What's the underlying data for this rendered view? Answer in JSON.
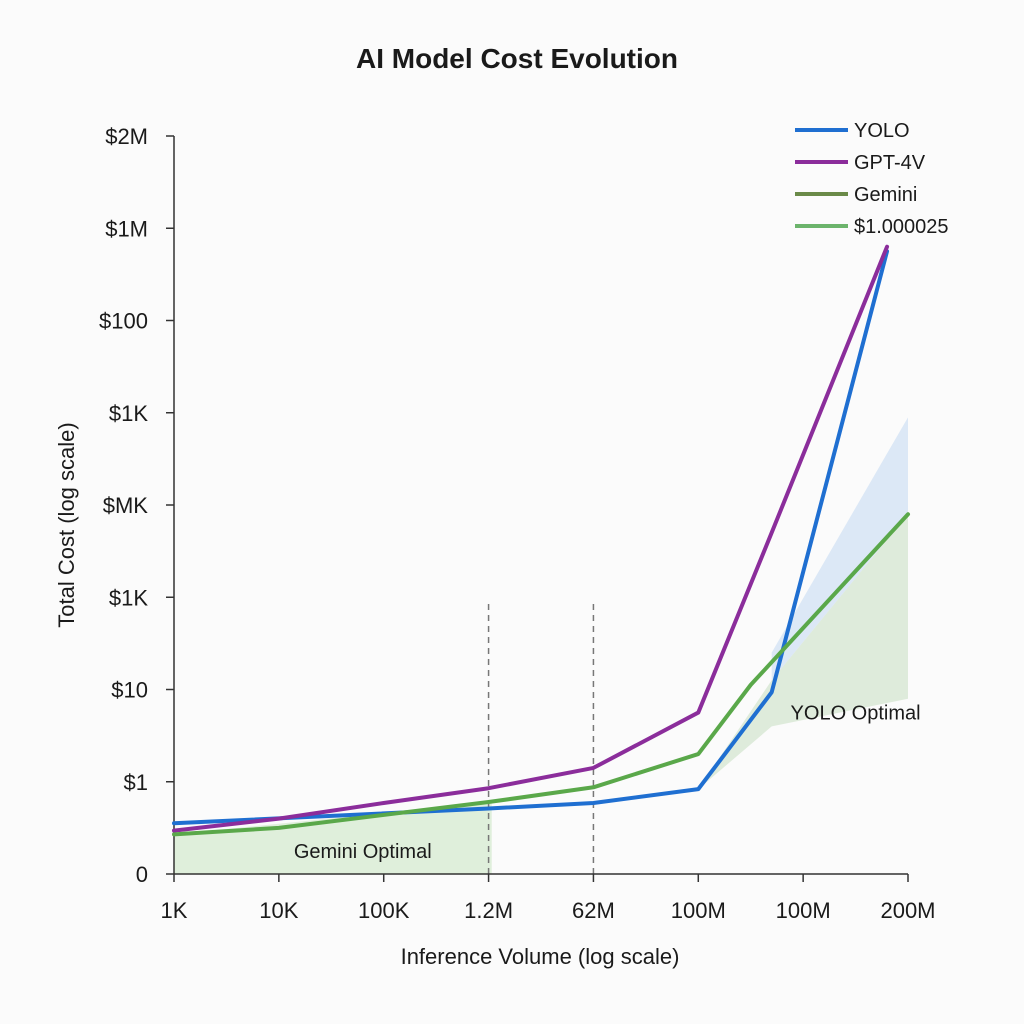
{
  "chart_data": {
    "type": "line",
    "title": "AI Model Cost Evolution",
    "xlabel": "Inference Volume (log scale)",
    "ylabel": "Total Cost (log scale)",
    "x_ticks": [
      "1K",
      "10K",
      "100K",
      "1.2M",
      "62M",
      "100M",
      "100M",
      "200M"
    ],
    "y_ticks": [
      "0",
      "$1",
      "$10",
      "$1K",
      "$MK",
      "$1K",
      "$100",
      "$1M",
      "$2M"
    ],
    "xlim": [
      0,
      7
    ],
    "ylim": [
      0,
      8
    ],
    "grid": false,
    "legend_position": "top-right",
    "series": [
      {
        "name": "YOLO",
        "color": "#1f6fd1",
        "x": [
          0,
          3,
          4,
          5,
          5.7,
          6.8
        ],
        "y": [
          0.55,
          0.71,
          0.77,
          0.92,
          1.97,
          6.75
        ]
      },
      {
        "name": "GPT-4V",
        "color": "#8b2d9b",
        "x": [
          0,
          1,
          2,
          3,
          4,
          5,
          5.7,
          6.8
        ],
        "y": [
          0.47,
          0.6,
          0.77,
          0.93,
          1.15,
          1.75,
          3.7,
          6.8
        ]
      },
      {
        "name": "Gemini",
        "color": "#5aa84a",
        "x": [
          0,
          1,
          3,
          4,
          5,
          5.5,
          7.0
        ],
        "y": [
          0.43,
          0.5,
          0.78,
          0.94,
          1.3,
          2.05,
          3.9
        ]
      }
    ],
    "legend": [
      {
        "label": "YOLO",
        "color": "#1f6fd1"
      },
      {
        "label": "GPT-4V",
        "color": "#8b2d9b"
      },
      {
        "label": "Gemini",
        "color": "#6a8a48"
      },
      {
        "label": "$1.000025",
        "color": "#6cb46c"
      }
    ],
    "reference_lines_x": [
      3.0,
      4.0
    ],
    "regions": [
      {
        "label": "Gemini Optimal",
        "color": "#d6ebd0",
        "x": [
          0,
          3.03
        ],
        "upper": [
          0.43,
          0.78
        ]
      },
      {
        "label": "YOLO Optimal",
        "color": "#d4e6d0",
        "x": [
          5,
          5.7,
          7.0
        ],
        "lower": [
          0.92,
          1.6,
          1.9
        ],
        "upper": [
          0.92,
          2.1,
          3.9
        ]
      }
    ],
    "blue_band": {
      "color": "#d6e4f5",
      "x": [
        5.7,
        7.0
      ],
      "lower": [
        2.1,
        3.9
      ],
      "upper": [
        2.4,
        4.95
      ]
    },
    "annotations": [
      {
        "text": "Gemini Optimal",
        "x": 1.8,
        "y": 0.25
      },
      {
        "text": "YOLO Optimal",
        "x": 6.5,
        "y": 1.75
      }
    ]
  }
}
